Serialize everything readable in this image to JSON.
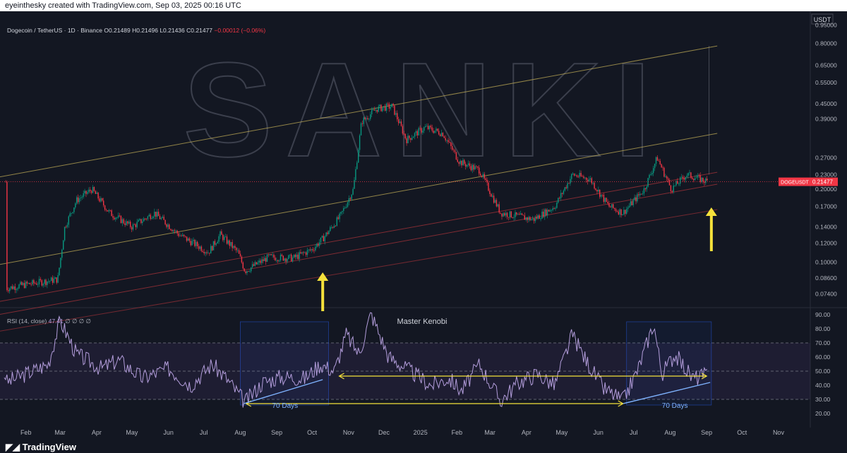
{
  "header": {
    "caption": "eyeinthesky created with TradingView.com, Sep 03, 2025 00:16 UTC"
  },
  "legend": {
    "symbol": "Dogecoin / TetherUS · 1D · Binance",
    "o": "O0.21489",
    "h": "H0.21496",
    "l": "L0.21436",
    "c": "C0.21477",
    "change": "−0.00012 (−0.06%)"
  },
  "price_axis": {
    "currency": "USDT",
    "tag_label": "DOGEUSDT",
    "tag_value": "0.21477"
  },
  "watermark": "SANKI",
  "rsi": {
    "label": "RSI (14, close)",
    "value": "47.41",
    "extra": "∅ ∅ ∅ ∅",
    "title": "Master Kenobi",
    "annotation_left": "70 Days",
    "annotation_right": "70 Days"
  },
  "footer": {
    "brand": "TradingView"
  },
  "colors": {
    "background": "#131722",
    "up": "#089981",
    "down": "#f23645",
    "rsi_line": "#b39ddb",
    "channel_upper": "#c9b458",
    "channel_lower": "#b0343b",
    "arrow": "#f5e13b",
    "support_line": "#7fb3ff"
  },
  "chart_data": [
    {
      "type": "line",
      "title": "Dogecoin / TetherUS · 1D · Binance",
      "y_scale": "log",
      "ylim": [
        0.065,
        1.0
      ],
      "y_ticks": [
        "0.95000",
        "0.80000",
        "0.65000",
        "0.55000",
        "0.45000",
        "0.39000",
        "0.27000",
        "0.23000",
        "0.20000",
        "0.17000",
        "0.14000",
        "0.12000",
        "0.10000",
        "0.08600",
        "0.07400"
      ],
      "x_ticks": [
        "Feb",
        "Mar",
        "Apr",
        "May",
        "Jun",
        "Jul",
        "Aug",
        "Sep",
        "Oct",
        "Nov",
        "Dec",
        "2025",
        "Feb",
        "Mar",
        "Apr",
        "May",
        "Jun",
        "Jul",
        "Aug",
        "Sep",
        "Oct",
        "Nov"
      ],
      "x": [
        "2024-01-15",
        "2024-02-01",
        "2024-02-28",
        "2024-03-05",
        "2024-03-15",
        "2024-03-28",
        "2024-04-12",
        "2024-05-01",
        "2024-05-20",
        "2024-06-10",
        "2024-07-05",
        "2024-07-15",
        "2024-07-30",
        "2024-08-05",
        "2024-08-25",
        "2024-09-15",
        "2024-10-01",
        "2024-10-10",
        "2024-10-25",
        "2024-11-05",
        "2024-11-12",
        "2024-11-25",
        "2024-12-08",
        "2024-12-20",
        "2025-01-05",
        "2025-01-20",
        "2025-02-03",
        "2025-02-20",
        "2025-03-10",
        "2025-04-07",
        "2025-04-25",
        "2025-05-10",
        "2025-05-25",
        "2025-06-10",
        "2025-06-22",
        "2025-07-10",
        "2025-07-21",
        "2025-08-02",
        "2025-08-15",
        "2025-09-02"
      ],
      "y": [
        0.078,
        0.081,
        0.085,
        0.14,
        0.18,
        0.2,
        0.16,
        0.14,
        0.16,
        0.13,
        0.11,
        0.13,
        0.11,
        0.092,
        0.105,
        0.104,
        0.113,
        0.125,
        0.155,
        0.2,
        0.38,
        0.43,
        0.44,
        0.32,
        0.36,
        0.34,
        0.26,
        0.24,
        0.16,
        0.15,
        0.17,
        0.23,
        0.22,
        0.17,
        0.16,
        0.2,
        0.27,
        0.2,
        0.23,
        0.21477
      ]
    },
    {
      "type": "line",
      "title": "RSI (14, close)",
      "ylim": [
        20,
        90
      ],
      "y_ticks": [
        "90.00",
        "80.00",
        "70.00",
        "60.00",
        "50.00",
        "40.00",
        "30.00",
        "20.00"
      ],
      "x": [
        "2024-01-15",
        "2024-02-01",
        "2024-02-20",
        "2024-03-01",
        "2024-03-15",
        "2024-04-05",
        "2024-04-20",
        "2024-05-10",
        "2024-06-01",
        "2024-06-20",
        "2024-07-08",
        "2024-07-20",
        "2024-08-05",
        "2024-08-20",
        "2024-09-05",
        "2024-09-25",
        "2024-10-08",
        "2024-10-20",
        "2024-10-30",
        "2024-11-10",
        "2024-11-20",
        "2024-12-05",
        "2024-12-20",
        "2025-01-10",
        "2025-01-25",
        "2025-02-05",
        "2025-02-20",
        "2025-03-10",
        "2025-03-25",
        "2025-04-10",
        "2025-04-25",
        "2025-05-10",
        "2025-05-20",
        "2025-06-05",
        "2025-06-22",
        "2025-07-05",
        "2025-07-18",
        "2025-07-25",
        "2025-08-05",
        "2025-08-20",
        "2025-09-02"
      ],
      "y": [
        42,
        48,
        55,
        86,
        62,
        52,
        58,
        45,
        52,
        40,
        55,
        45,
        28,
        42,
        46,
        45,
        55,
        50,
        76,
        62,
        91,
        60,
        52,
        40,
        45,
        36,
        55,
        29,
        42,
        48,
        40,
        76,
        60,
        38,
        29,
        52,
        84,
        48,
        62,
        45,
        47.41
      ],
      "reference_lines": [
        70,
        50,
        30
      ]
    }
  ]
}
